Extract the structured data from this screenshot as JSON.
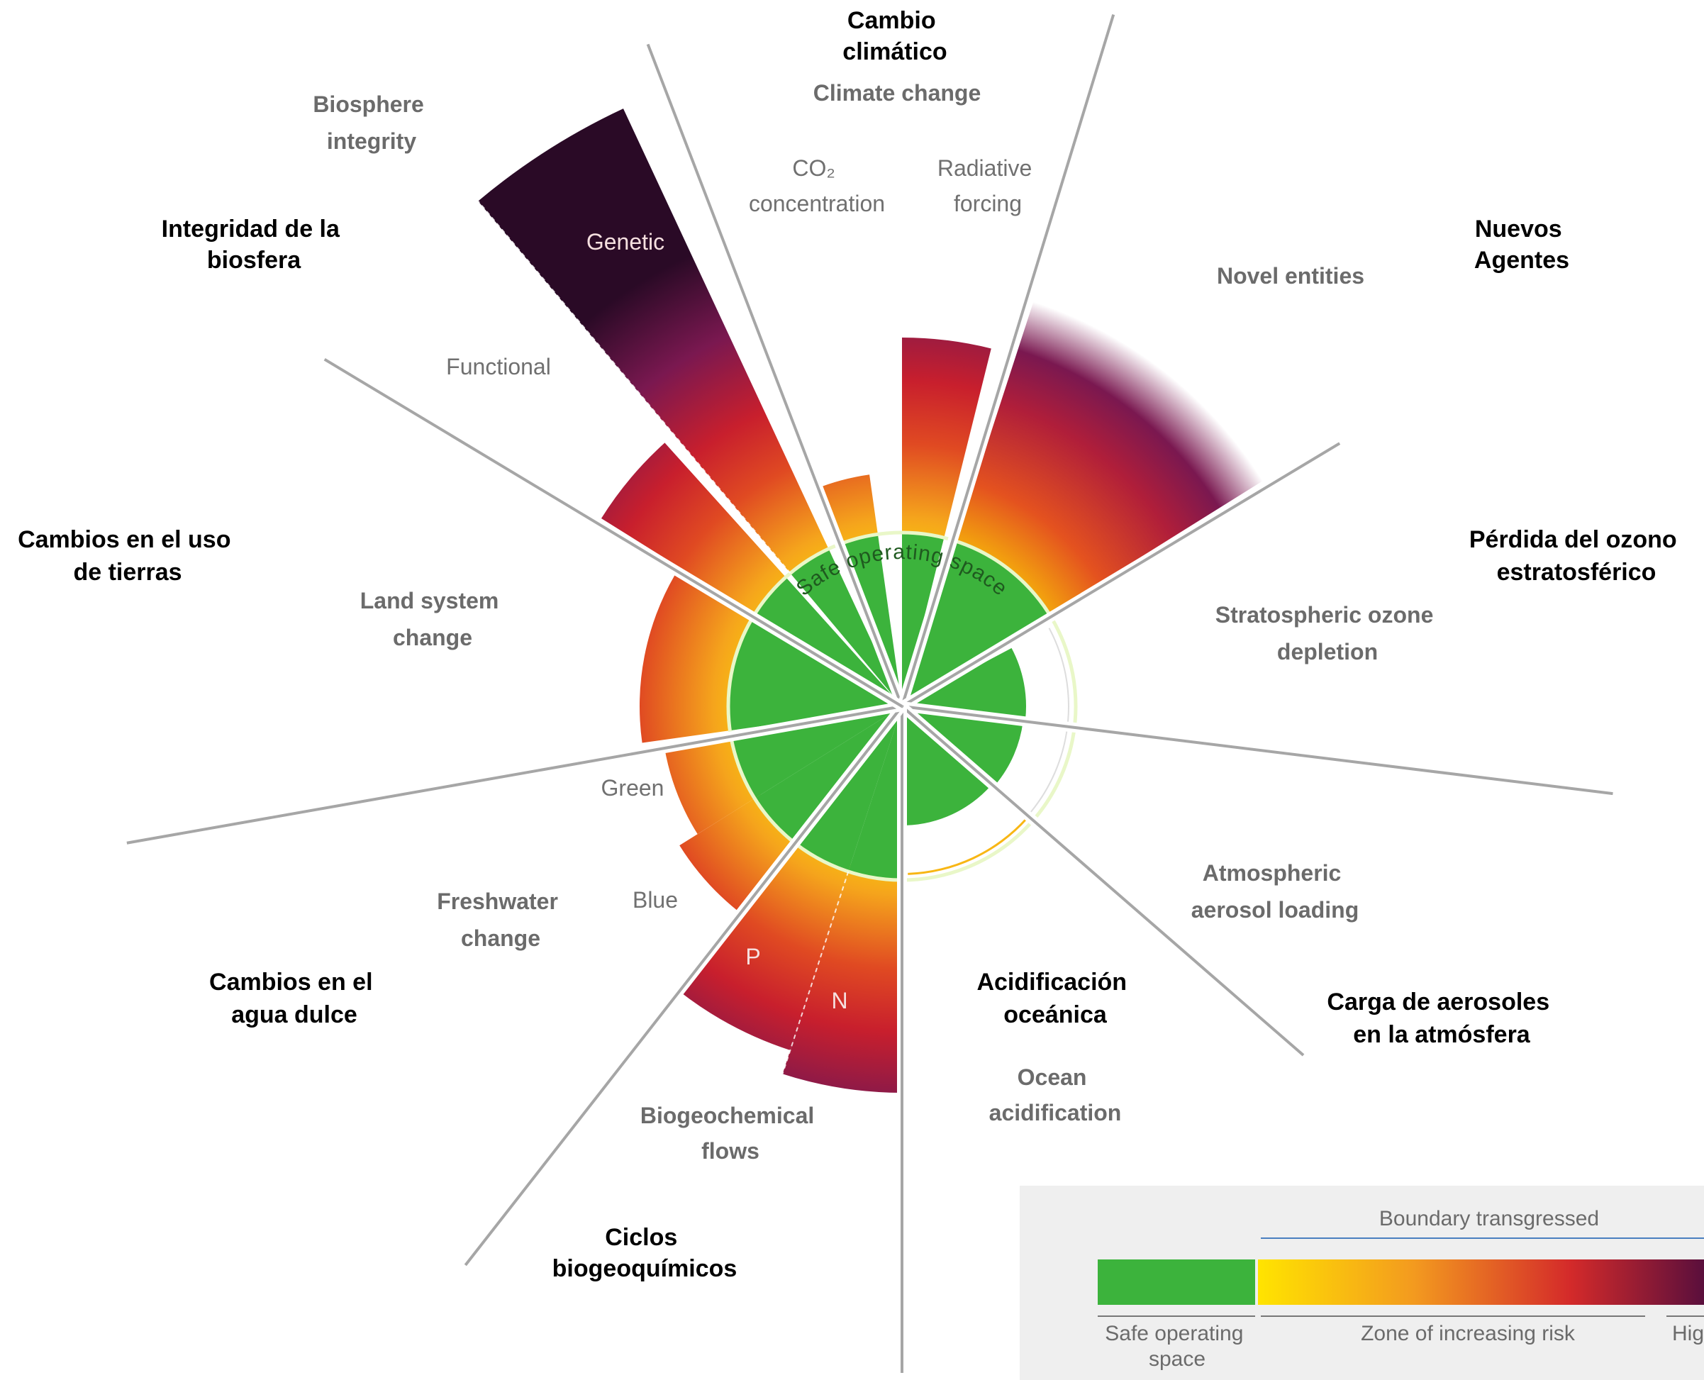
{
  "categories": {
    "climate": {
      "es": [
        "Cambio",
        "climático"
      ],
      "en": [
        "Climate change"
      ]
    },
    "novel": {
      "es": [
        "Nuevos",
        "Agentes"
      ],
      "en": [
        "Novel entities"
      ]
    },
    "ozone": {
      "es": [
        "Pérdida del ozono",
        "estratosférico"
      ],
      "en": [
        "Stratospheric ozone",
        "depletion"
      ]
    },
    "aerosol": {
      "es": [
        "Carga de aerosoles",
        "en la atmósfera"
      ],
      "en": [
        "Atmospheric",
        "aerosol loading"
      ]
    },
    "ocean": {
      "es": [
        "Acidificación",
        "oceánica"
      ],
      "en": [
        "Ocean",
        "acidification"
      ]
    },
    "biogeo": {
      "es": [
        "Ciclos",
        "biogeoquímicos"
      ],
      "en": [
        "Biogeochemical",
        "flows"
      ]
    },
    "freshwater": {
      "es": [
        "Cambios en el",
        "agua dulce"
      ],
      "en": [
        "Freshwater",
        "change"
      ]
    },
    "land": {
      "es": [
        "Cambios en el uso",
        "de tierras"
      ],
      "en": [
        "Land system",
        "change"
      ]
    },
    "biosphere": {
      "es": [
        "Integridad de la",
        "biosfera"
      ],
      "en": [
        "Biosphere",
        "integrity"
      ]
    }
  },
  "sub_labels": {
    "co2": [
      "CO₂",
      "concentration"
    ],
    "radiative": [
      "Radiative",
      "forcing"
    ],
    "genetic": "Genetic",
    "functional": "Functional",
    "green": "Green",
    "blue": "Blue",
    "p": "P",
    "n": "N"
  },
  "center_label": "Safe operating space",
  "legend": {
    "top_label": "Boundary transgressed",
    "safe_label": [
      "Safe operating",
      "space"
    ],
    "risk_label": "Zone of increasing risk",
    "high_label": "Hig"
  },
  "colors": {
    "safe": "#3cb33c",
    "yellow": "#ffd400",
    "orange": "#f39a1f",
    "red": "#d42a2a",
    "purple": "#7a1850",
    "dark": "#2a0a26",
    "axis": "#a6a6a6"
  },
  "boundaries": [
    {
      "id": "climate-co2",
      "status": "transgressed"
    },
    {
      "id": "climate-radiative",
      "status": "high-risk"
    },
    {
      "id": "novel-entities",
      "status": "transgressed"
    },
    {
      "id": "ozone",
      "status": "safe"
    },
    {
      "id": "aerosol",
      "status": "safe"
    },
    {
      "id": "ocean-acidification",
      "status": "safe"
    },
    {
      "id": "biogeochemical-n",
      "status": "high-risk"
    },
    {
      "id": "biogeochemical-p",
      "status": "high-risk"
    },
    {
      "id": "freshwater-blue",
      "status": "transgressed"
    },
    {
      "id": "freshwater-green",
      "status": "transgressed"
    },
    {
      "id": "land-system",
      "status": "transgressed"
    },
    {
      "id": "biosphere-functional",
      "status": "transgressed"
    },
    {
      "id": "biosphere-genetic",
      "status": "high-risk"
    }
  ]
}
